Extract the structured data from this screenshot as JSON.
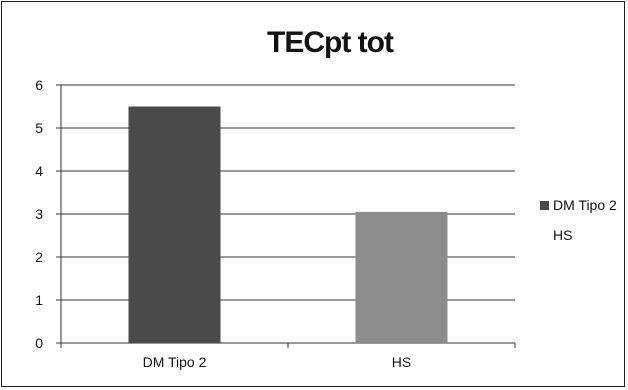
{
  "chart_data": {
    "type": "bar",
    "title": "TECpt tot",
    "categories": [
      "DM Tipo 2",
      "HS"
    ],
    "values": [
      5.5,
      3.05
    ],
    "colors": [
      "#4a4a4a",
      "#8c8c8c"
    ],
    "ylim": [
      0,
      6
    ],
    "yticks": [
      "0",
      "1",
      "2",
      "3",
      "4",
      "5",
      "6"
    ],
    "grid": true,
    "legend_position": "right",
    "legend": [
      "DM Tipo 2",
      "HS"
    ]
  }
}
